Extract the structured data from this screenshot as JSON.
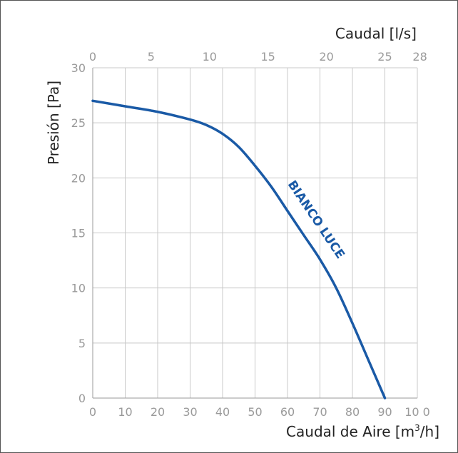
{
  "chart_data": {
    "type": "line",
    "x_bottom": {
      "label": "Caudal de Aire [m³/h]",
      "range": [
        0,
        100
      ],
      "ticks": [
        0,
        10,
        20,
        30,
        40,
        50,
        60,
        70,
        80,
        90,
        100
      ],
      "tick_labels": [
        "0",
        "10",
        "20",
        "30",
        "40",
        "50",
        "60",
        "70",
        "80",
        "90",
        "10 0"
      ]
    },
    "x_top": {
      "label": "Caudal [l/s]",
      "range": [
        0,
        27.78
      ],
      "ticks": [
        0,
        5,
        10,
        15,
        20,
        25,
        28
      ],
      "tick_labels": [
        "0",
        "5",
        "10",
        "15",
        "20",
        "25",
        "28"
      ]
    },
    "y": {
      "label": "Presión [Pa]",
      "range": [
        0,
        30
      ],
      "ticks": [
        0,
        5,
        10,
        15,
        20,
        25,
        30
      ],
      "tick_labels": [
        "0",
        "5",
        "10",
        "15",
        "20",
        "25",
        "30"
      ]
    },
    "grid": true,
    "series": [
      {
        "name": "BIANCO LUCE",
        "color": "#1a5aa6",
        "x": [
          0,
          10,
          20,
          30,
          35,
          40,
          45,
          50,
          55,
          60,
          65,
          70,
          75,
          80,
          85,
          90
        ],
        "y": [
          27,
          26.5,
          26,
          25.3,
          24.8,
          24,
          22.8,
          21.1,
          19.2,
          17,
          14.8,
          12.6,
          10,
          6.8,
          3.4,
          0
        ]
      }
    ]
  }
}
